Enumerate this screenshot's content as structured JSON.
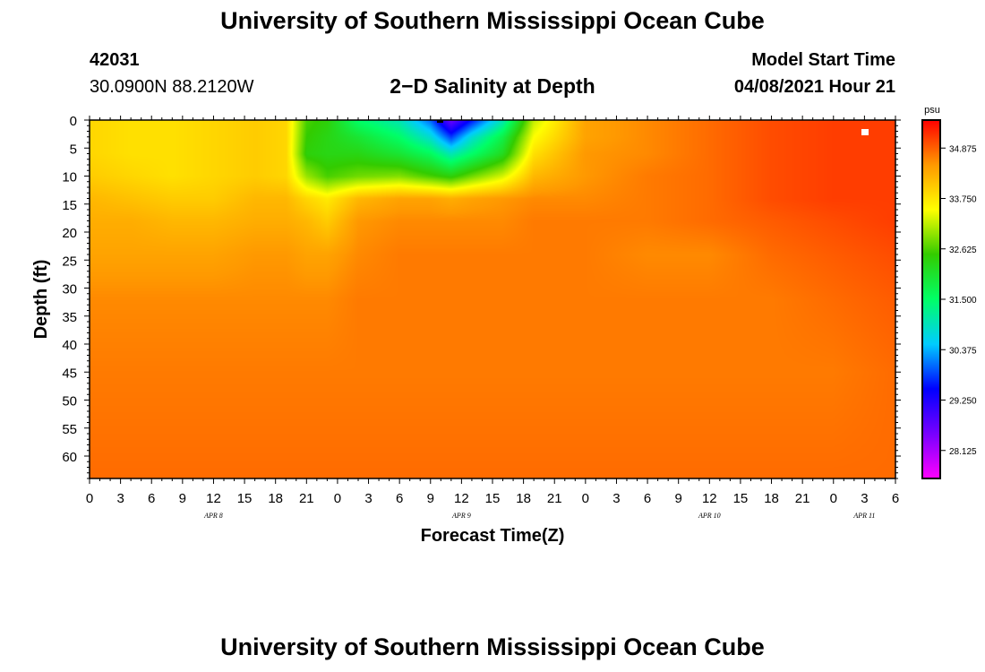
{
  "header": {
    "title": "University of Southern Mississippi Ocean Cube",
    "station_id": "42031",
    "coordinates": "30.0900N  88.2120W",
    "plot_title": "2−D Salinity at Depth",
    "model_start_label": "Model Start Time",
    "model_start_value": "04/08/2021 Hour 21"
  },
  "footer": {
    "title": "University of Southern Mississippi Ocean Cube"
  },
  "colors": {
    "scale": [
      "#ff00ff",
      "#7700ff",
      "#0000ff",
      "#00ccff",
      "#00ff66",
      "#33cc00",
      "#ffff00",
      "#ff9900",
      "#ff0000"
    ]
  },
  "chart_data": {
    "type": "heatmap",
    "title": "2−D Salinity at Depth",
    "xlabel": "Forecast Time(Z)",
    "ylabel": "Depth (ft)",
    "x_hours": [
      0,
      3,
      6,
      9,
      12,
      15,
      18,
      21,
      24,
      27,
      30,
      33,
      36,
      39,
      42,
      45,
      48,
      51,
      54,
      57,
      60,
      63,
      66,
      69,
      72,
      75,
      78
    ],
    "x_tick_labels": [
      "0",
      "3",
      "6",
      "9",
      "12",
      "15",
      "18",
      "21",
      "0",
      "3",
      "6",
      "9",
      "12",
      "15",
      "18",
      "21",
      "0",
      "3",
      "6",
      "9",
      "12",
      "15",
      "18",
      "21",
      "0",
      "3",
      "6"
    ],
    "date_labels": [
      {
        "label": "APR 8",
        "hour": 12
      },
      {
        "label": "APR 9",
        "hour": 36
      },
      {
        "label": "APR 10",
        "hour": 60
      },
      {
        "label": "APR 11",
        "hour": 75
      }
    ],
    "xlim": [
      0,
      78
    ],
    "ylim": [
      0,
      64
    ],
    "y_ticks": [
      0,
      5,
      10,
      15,
      20,
      25,
      30,
      35,
      40,
      45,
      50,
      55,
      60
    ],
    "colorbar": {
      "unit": "psu",
      "range": [
        27.5,
        35.5
      ],
      "tick_values": [
        34.875,
        33.75,
        32.625,
        31.5,
        30.375,
        29.25,
        28.125
      ],
      "tick_labels": [
        "34.875",
        "33.750",
        "32.625",
        "31.500",
        "30.375",
        "29.250",
        "28.125"
      ]
    },
    "depths": [
      0,
      3,
      6,
      10,
      14,
      18,
      24,
      32,
      45,
      64
    ],
    "hours": [
      0,
      4,
      8,
      12,
      16,
      19,
      21,
      23,
      26,
      30,
      33,
      35,
      37,
      40,
      43,
      48,
      54,
      60,
      66,
      72,
      78
    ],
    "values": [
      [
        33.9,
        33.8,
        33.8,
        33.9,
        34.0,
        33.9,
        32.6,
        32.4,
        31.5,
        31.0,
        30.0,
        28.6,
        29.6,
        31.0,
        33.2,
        34.4,
        34.6,
        34.8,
        35.0,
        35.1,
        35.1
      ],
      [
        33.9,
        33.8,
        33.8,
        33.9,
        34.0,
        33.9,
        32.5,
        32.3,
        32.0,
        31.5,
        30.8,
        29.8,
        30.8,
        31.8,
        33.5,
        34.4,
        34.6,
        34.8,
        35.0,
        35.1,
        35.1
      ],
      [
        33.9,
        33.8,
        33.8,
        33.9,
        34.0,
        33.9,
        32.4,
        32.3,
        32.3,
        32.0,
        31.6,
        31.0,
        31.5,
        32.2,
        33.8,
        34.5,
        34.6,
        34.8,
        35.0,
        35.1,
        35.1
      ],
      [
        34.0,
        33.9,
        33.8,
        33.9,
        34.0,
        33.9,
        33.0,
        32.6,
        32.8,
        32.9,
        32.6,
        32.4,
        32.8,
        33.3,
        34.2,
        34.5,
        34.7,
        34.8,
        35.0,
        35.1,
        35.1
      ],
      [
        34.2,
        34.1,
        34.0,
        34.0,
        34.2,
        34.2,
        33.9,
        33.7,
        34.2,
        34.4,
        34.4,
        34.3,
        34.4,
        34.5,
        34.6,
        34.6,
        34.7,
        34.8,
        35.0,
        35.1,
        35.1
      ],
      [
        34.3,
        34.3,
        34.2,
        34.2,
        34.3,
        34.3,
        34.2,
        34.0,
        34.5,
        34.6,
        34.6,
        34.6,
        34.6,
        34.6,
        34.7,
        34.7,
        34.7,
        34.8,
        34.9,
        35.0,
        35.1
      ],
      [
        34.4,
        34.4,
        34.4,
        34.4,
        34.5,
        34.5,
        34.4,
        34.4,
        34.6,
        34.7,
        34.7,
        34.7,
        34.7,
        34.7,
        34.7,
        34.7,
        34.6,
        34.6,
        34.8,
        34.9,
        35.0
      ],
      [
        34.6,
        34.6,
        34.6,
        34.6,
        34.6,
        34.6,
        34.6,
        34.6,
        34.7,
        34.7,
        34.7,
        34.7,
        34.7,
        34.7,
        34.7,
        34.7,
        34.7,
        34.7,
        34.7,
        34.8,
        34.9
      ],
      [
        34.7,
        34.7,
        34.7,
        34.7,
        34.7,
        34.7,
        34.7,
        34.7,
        34.7,
        34.7,
        34.7,
        34.7,
        34.7,
        34.7,
        34.7,
        34.7,
        34.7,
        34.7,
        34.7,
        34.7,
        34.8
      ],
      [
        34.8,
        34.8,
        34.8,
        34.8,
        34.8,
        34.8,
        34.8,
        34.8,
        34.8,
        34.8,
        34.8,
        34.8,
        34.8,
        34.8,
        34.8,
        34.8,
        34.8,
        34.8,
        34.8,
        34.8,
        34.8
      ]
    ],
    "grid": false,
    "legend": "right colorbar"
  }
}
